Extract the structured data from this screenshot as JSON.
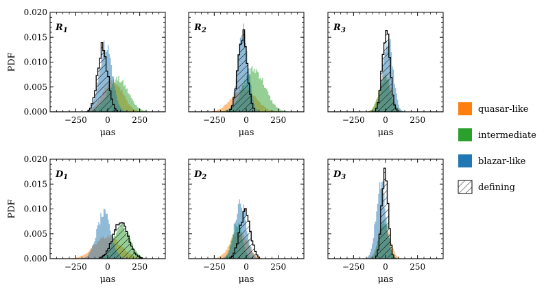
{
  "chart_data": {
    "type": "histogram",
    "y_label": "PDF",
    "x_label": "μas",
    "xlim": [
      -450,
      450
    ],
    "ylim": [
      0,
      0.02
    ],
    "x_ticks": [
      -250,
      0,
      250
    ],
    "x_tick_labels": [
      "−250",
      "0",
      "250"
    ],
    "y_ticks": [
      0,
      0.005,
      0.01,
      0.015,
      0.02
    ],
    "y_tick_labels": [
      "0.000",
      "0.005",
      "0.010",
      "0.015",
      "0.020"
    ],
    "legend": [
      {
        "name": "quasar-like",
        "color": "#ff7f0e",
        "style": "fill"
      },
      {
        "name": "intermediate",
        "color": "#2ca02c",
        "style": "fill"
      },
      {
        "name": "blazar-like",
        "color": "#1f77b4",
        "style": "fill"
      },
      {
        "name": "defining",
        "color": "#000000",
        "style": "hatch"
      }
    ],
    "panels": [
      {
        "label": "R",
        "subscript": "1",
        "series": [
          {
            "name": "quasar-like",
            "mean": 40,
            "sigma": 75,
            "peak": 0.0065
          },
          {
            "name": "intermediate",
            "mean": 80,
            "sigma": 80,
            "peak": 0.0065
          },
          {
            "name": "blazar-like",
            "mean": -15,
            "sigma": 50,
            "peak": 0.0135
          },
          {
            "name": "defining",
            "mean": -40,
            "sigma": 40,
            "peak": 0.0128
          }
        ]
      },
      {
        "label": "R",
        "subscript": "2",
        "series": [
          {
            "name": "quasar-like",
            "mean": -20,
            "sigma": 90,
            "peak": 0.005
          },
          {
            "name": "intermediate",
            "mean": 60,
            "sigma": 85,
            "peak": 0.0085
          },
          {
            "name": "blazar-like",
            "mean": -25,
            "sigma": 40,
            "peak": 0.016
          },
          {
            "name": "defining",
            "mean": -30,
            "sigma": 35,
            "peak": 0.0158
          }
        ]
      },
      {
        "label": "R",
        "subscript": "3",
        "series": [
          {
            "name": "quasar-like",
            "mean": 0,
            "sigma": 45,
            "peak": 0.0075
          },
          {
            "name": "intermediate",
            "mean": -5,
            "sigma": 45,
            "peak": 0.007
          },
          {
            "name": "blazar-like",
            "mean": 20,
            "sigma": 38,
            "peak": 0.015
          },
          {
            "name": "defining",
            "mean": 5,
            "sigma": 30,
            "peak": 0.0162
          }
        ]
      },
      {
        "label": "D",
        "subscript": "1",
        "series": [
          {
            "name": "quasar-like",
            "mean": 0,
            "sigma": 100,
            "peak": 0.0045
          },
          {
            "name": "intermediate",
            "mean": 110,
            "sigma": 65,
            "peak": 0.0065
          },
          {
            "name": "blazar-like",
            "mean": -30,
            "sigma": 55,
            "peak": 0.009
          },
          {
            "name": "defining",
            "mean": 100,
            "sigma": 60,
            "peak": 0.0072
          }
        ]
      },
      {
        "label": "D",
        "subscript": "2",
        "series": [
          {
            "name": "quasar-like",
            "mean": -60,
            "sigma": 65,
            "peak": 0.0055
          },
          {
            "name": "intermediate",
            "mean": -70,
            "sigma": 40,
            "peak": 0.007
          },
          {
            "name": "blazar-like",
            "mean": -45,
            "sigma": 45,
            "peak": 0.0115
          },
          {
            "name": "defining",
            "mean": -10,
            "sigma": 42,
            "peak": 0.0093
          }
        ]
      },
      {
        "label": "D",
        "subscript": "3",
        "series": [
          {
            "name": "quasar-like",
            "mean": -10,
            "sigma": 45,
            "peak": 0.0065
          },
          {
            "name": "intermediate",
            "mean": -15,
            "sigma": 35,
            "peak": 0.008
          },
          {
            "name": "blazar-like",
            "mean": -35,
            "sigma": 38,
            "peak": 0.0155
          },
          {
            "name": "defining",
            "mean": -5,
            "sigma": 25,
            "peak": 0.0182
          }
        ]
      }
    ]
  }
}
